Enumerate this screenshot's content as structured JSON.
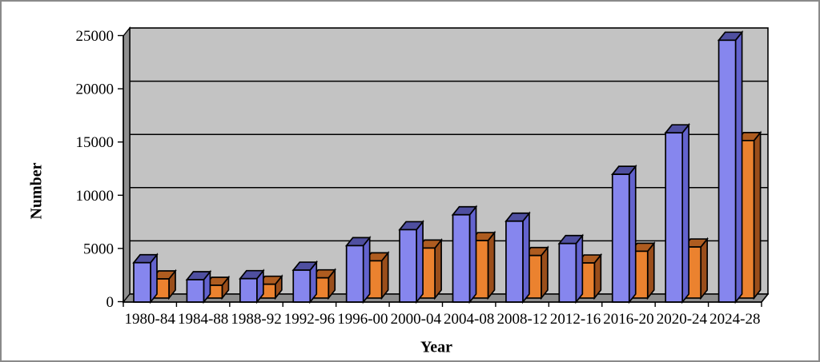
{
  "figure": {
    "background_color": "#FFFFFF",
    "border_color": "#8A8A8A"
  },
  "chart_data": {
    "type": "bar",
    "style": "3d-clustered-column",
    "title": "",
    "xlabel": "Year",
    "ylabel": "Number",
    "categories": [
      "1980-84",
      "1984-88",
      "1988-92",
      "1992-96",
      "1996-00",
      "2000-04",
      "2004-08",
      "2008-12",
      "2012-16",
      "2016-20",
      "2020-24",
      "2024-28"
    ],
    "series": [
      {
        "name": "blue",
        "values": [
          3700,
          2100,
          2200,
          3000,
          5300,
          6800,
          8200,
          7600,
          5500,
          12000,
          15900,
          24600
        ],
        "front_color": "#8686EE",
        "top_color": "#4F4FA0",
        "side_color": "#6363CE"
      },
      {
        "name": "orange",
        "values": [
          1800,
          1200,
          1300,
          1900,
          3500,
          4700,
          5400,
          4000,
          3300,
          4400,
          4800,
          14800
        ],
        "front_color": "#EB822F",
        "top_color": "#AE5C20",
        "side_color": "#9A4E1B"
      }
    ],
    "ylim": [
      0,
      25000
    ],
    "ytick_step": 5000,
    "yticks": [
      "0",
      "5000",
      "10000",
      "15000",
      "20000",
      "25000"
    ],
    "grid": true,
    "legend_position": "none",
    "wall_color": "#C3C3C3",
    "floor_color": "#8F8F8F",
    "outline_color": "#000000"
  }
}
